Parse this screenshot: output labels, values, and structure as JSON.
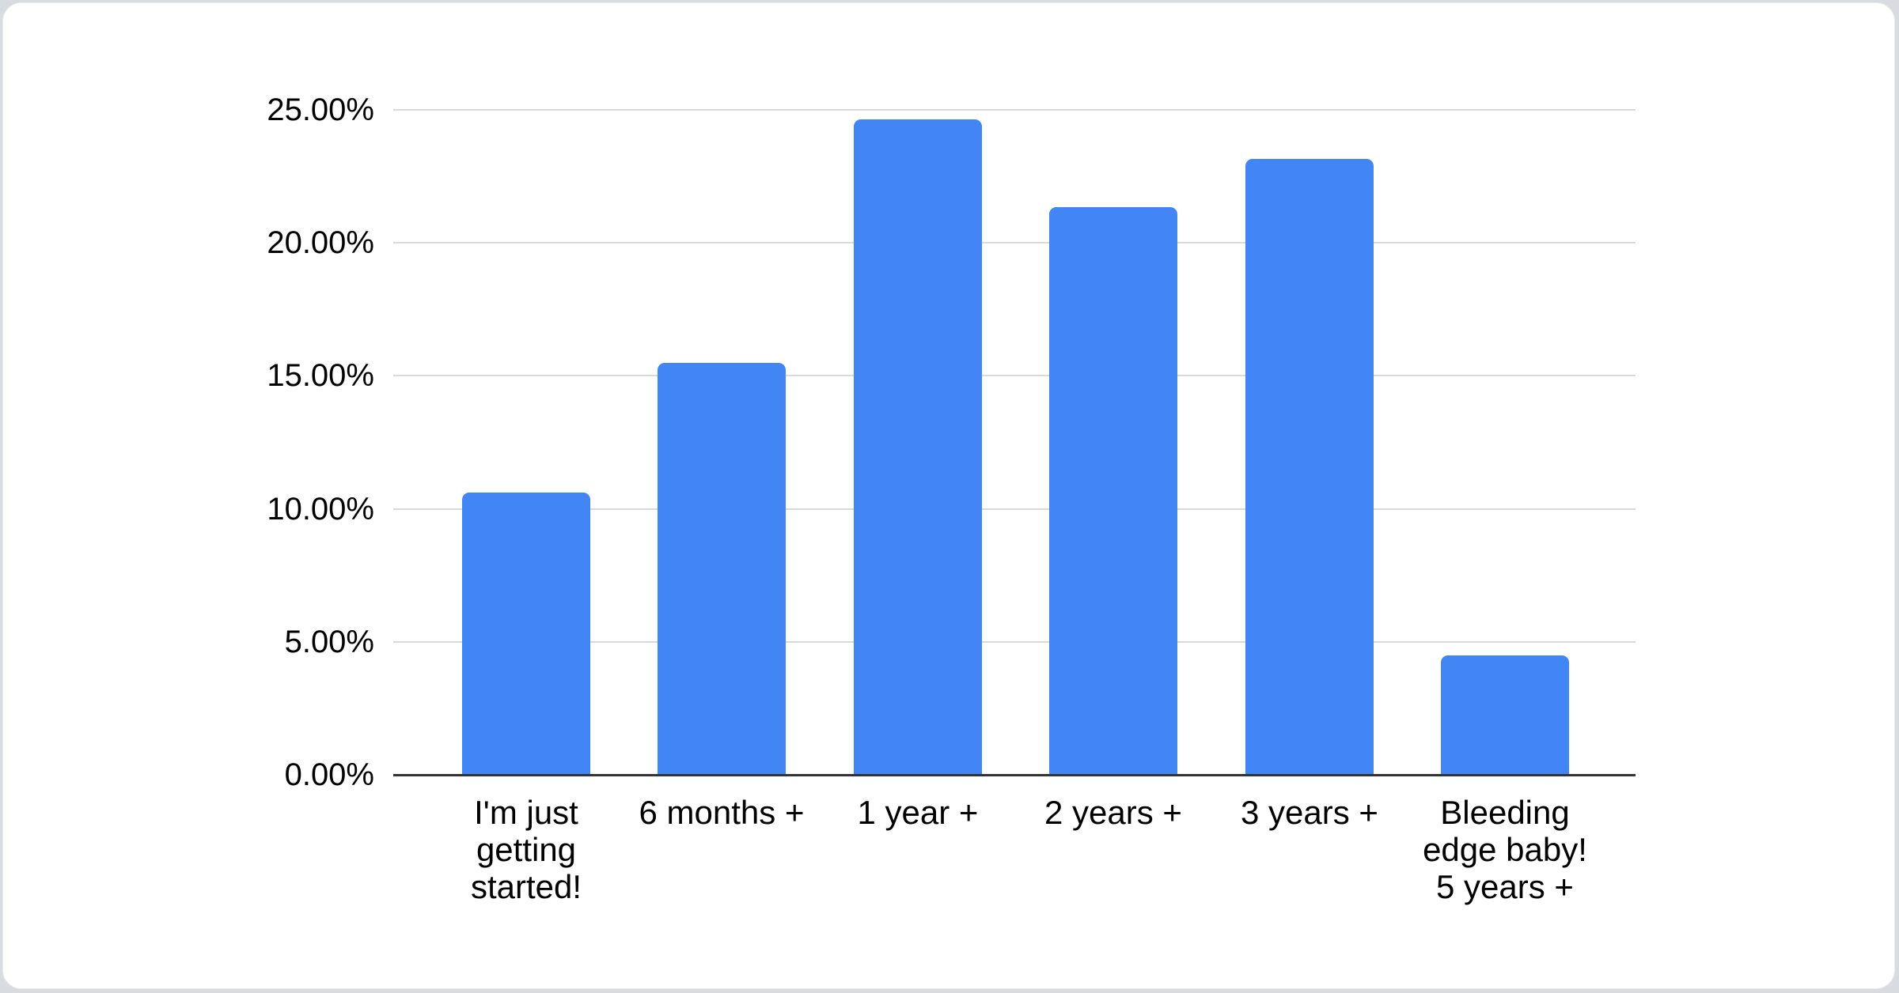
{
  "chart_data": {
    "type": "bar",
    "title": "",
    "categories": [
      "I'm just getting started!",
      "6 months +",
      "1 year +",
      "2 years +",
      "3 years +",
      "Bleeding edge baby! 5 years +"
    ],
    "categories_display": [
      "I'm just\ngetting\nstarted!",
      "6 months +",
      "1 year +",
      "2 years +",
      "3 years +",
      "Bleeding\nedge baby!\n5 years +"
    ],
    "values": [
      10.6,
      15.5,
      24.65,
      21.35,
      23.15,
      4.5
    ],
    "y_ticks": [
      "0.00%",
      "5.00%",
      "10.00%",
      "15.00%",
      "20.00%",
      "25.00%"
    ],
    "y_tick_values": [
      0,
      5,
      10,
      15,
      20,
      25
    ],
    "ylim": [
      0,
      25
    ],
    "xlabel": "",
    "ylabel": "",
    "grid": "horizontal",
    "legend": "none",
    "bar_color": "#4285f4",
    "gridline_color": "#d9d9d9",
    "axis_line_color": "#333333",
    "text_color": "#000000"
  }
}
